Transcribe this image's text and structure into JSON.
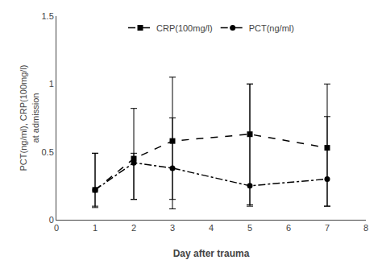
{
  "chart_data": {
    "type": "line",
    "xlabel": "Day after trauma",
    "ylabel": "PCT(ng/ml), CRP(100mg/l)\nat admission",
    "x": [
      1,
      2,
      3,
      5,
      7
    ],
    "series": [
      {
        "name": "CRP(100mg/l)",
        "color": "#000000",
        "marker": "square",
        "line_style": "dash",
        "values": [
          0.22,
          0.45,
          0.58,
          0.63,
          0.53
        ],
        "err_low": [
          0.12,
          0.3,
          0.43,
          0.52,
          0.43
        ],
        "err_high": [
          0.27,
          0.37,
          0.17,
          0.37,
          0.23
        ]
      },
      {
        "name": "PCT(ng/ml)",
        "color": "#000000",
        "marker": "circle",
        "line_style": "dashdot",
        "values": [
          0.22,
          0.42,
          0.38,
          0.25,
          0.3
        ],
        "err_low": [
          0.13,
          0.27,
          0.3,
          0.15,
          0.2
        ],
        "err_high": [
          0.27,
          0.07,
          0.67,
          0.75,
          0.7
        ]
      }
    ],
    "xlim": [
      0,
      8
    ],
    "ylim": [
      0.0,
      1.5
    ],
    "xticks": [
      0,
      1,
      2,
      3,
      4,
      5,
      6,
      7,
      8
    ],
    "yticks": [
      0.0,
      0.5,
      1.0,
      1.5
    ],
    "grid": false,
    "legend": "upper center"
  }
}
